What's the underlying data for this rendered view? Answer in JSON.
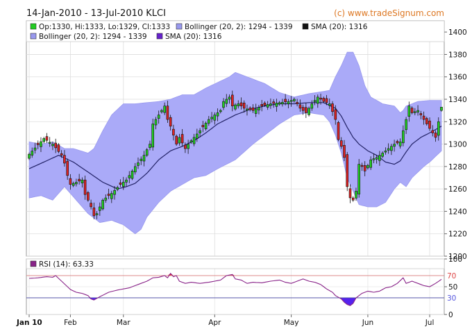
{
  "header": {
    "title": "14-Jan-2010 - 13-Jul-2010 KLCI",
    "watermark": "(c) www.tradeSignum.com"
  },
  "legend": {
    "ohlc": "Op:1330, Hi:1333, Lo:1329, Cl:1333",
    "bollinger_1": "Bollinger (20, 2): 1294 - 1339",
    "sma_1": "SMA (20): 1316",
    "bollinger_2": "Bollinger (20, 2): 1294 - 1339",
    "sma_2": "SMA (20): 1316"
  },
  "rsi_legend": "RSI (14): 63.33",
  "colors": {
    "up_candle": "#22cc22",
    "down_candle": "#dd2222",
    "bollinger_fill": "#aaaaf8",
    "bollinger_legend": "#9999ee",
    "sma_line": "#222266",
    "sma_legend": "#6622cc",
    "rsi_line": "#882288",
    "rsi_over": "#ee2222",
    "rsi_under": "#5522ee",
    "rsi_legend": "#882288",
    "level70": "#dd8888",
    "level30": "#5555aa"
  },
  "chart_data": [
    {
      "type": "candlestick",
      "title": "14-Jan-2010 - 13-Jul-2010 KLCI",
      "ylim": [
        1200,
        1410
      ],
      "y_ticks": [
        1200,
        1220,
        1240,
        1260,
        1280,
        1300,
        1320,
        1340,
        1360,
        1380,
        1400
      ],
      "x_ticks": [
        "Jan 10",
        "Feb",
        "Mar",
        "Apr",
        "May",
        "Jun",
        "Jul"
      ],
      "x_tick_index": [
        0,
        14,
        32,
        63,
        89,
        115,
        136
      ],
      "n_days": 141,
      "close_keys": [
        [
          0,
          1291
        ],
        [
          5,
          1305
        ],
        [
          8,
          1300
        ],
        [
          11,
          1290
        ],
        [
          12,
          1283
        ],
        [
          13,
          1272
        ],
        [
          14,
          1264
        ],
        [
          16,
          1266
        ],
        [
          18,
          1268
        ],
        [
          19,
          1255
        ],
        [
          20,
          1250
        ],
        [
          21,
          1244
        ],
        [
          22,
          1236
        ],
        [
          23,
          1238
        ],
        [
          25,
          1250
        ],
        [
          28,
          1256
        ],
        [
          31,
          1264
        ],
        [
          33,
          1268
        ],
        [
          36,
          1280
        ],
        [
          39,
          1290
        ],
        [
          41,
          1300
        ],
        [
          42,
          1318
        ],
        [
          44,
          1326
        ],
        [
          46,
          1334
        ],
        [
          47,
          1322
        ],
        [
          48,
          1316
        ],
        [
          49,
          1308
        ],
        [
          50,
          1300
        ],
        [
          51,
          1306
        ],
        [
          53,
          1296
        ],
        [
          54,
          1300
        ],
        [
          56,
          1306
        ],
        [
          58,
          1312
        ],
        [
          61,
          1322
        ],
        [
          63,
          1326
        ],
        [
          65,
          1330
        ],
        [
          66,
          1338
        ],
        [
          68,
          1342
        ],
        [
          69,
          1334
        ],
        [
          71,
          1336
        ],
        [
          73,
          1332
        ],
        [
          76,
          1330
        ],
        [
          79,
          1334
        ],
        [
          82,
          1336
        ],
        [
          85,
          1337
        ],
        [
          88,
          1338
        ],
        [
          90,
          1340
        ],
        [
          92,
          1332
        ],
        [
          94,
          1328
        ],
        [
          96,
          1336
        ],
        [
          98,
          1342
        ],
        [
          100,
          1338
        ],
        [
          102,
          1336
        ],
        [
          104,
          1322
        ],
        [
          105,
          1304
        ],
        [
          106,
          1298
        ],
        [
          107,
          1288
        ],
        [
          108,
          1262
        ],
        [
          109,
          1252
        ],
        [
          110,
          1250
        ],
        [
          111,
          1258
        ],
        [
          112,
          1282
        ],
        [
          113,
          1280
        ],
        [
          114,
          1276
        ],
        [
          116,
          1286
        ],
        [
          118,
          1288
        ],
        [
          120,
          1292
        ],
        [
          122,
          1296
        ],
        [
          124,
          1300
        ],
        [
          126,
          1302
        ],
        [
          128,
          1322
        ],
        [
          129,
          1334
        ],
        [
          130,
          1328
        ],
        [
          132,
          1330
        ],
        [
          134,
          1322
        ],
        [
          136,
          1314
        ],
        [
          138,
          1306
        ],
        [
          139,
          1320
        ],
        [
          140,
          1333
        ]
      ],
      "sma20_keys": [
        [
          0,
          1278
        ],
        [
          10,
          1290
        ],
        [
          15,
          1284
        ],
        [
          20,
          1275
        ],
        [
          25,
          1266
        ],
        [
          30,
          1260
        ],
        [
          33,
          1262
        ],
        [
          36,
          1265
        ],
        [
          40,
          1274
        ],
        [
          44,
          1286
        ],
        [
          48,
          1294
        ],
        [
          52,
          1298
        ],
        [
          56,
          1303
        ],
        [
          60,
          1310
        ],
        [
          64,
          1318
        ],
        [
          70,
          1326
        ],
        [
          75,
          1331
        ],
        [
          80,
          1334
        ],
        [
          85,
          1336
        ],
        [
          90,
          1336
        ],
        [
          95,
          1337
        ],
        [
          100,
          1337
        ],
        [
          104,
          1332
        ],
        [
          106,
          1325
        ],
        [
          108,
          1315
        ],
        [
          110,
          1306
        ],
        [
          112,
          1300
        ],
        [
          115,
          1294
        ],
        [
          118,
          1290
        ],
        [
          121,
          1284
        ],
        [
          124,
          1282
        ],
        [
          126,
          1285
        ],
        [
          128,
          1293
        ],
        [
          130,
          1300
        ],
        [
          133,
          1306
        ],
        [
          136,
          1310
        ],
        [
          140,
          1316
        ]
      ],
      "boll_upper_keys": [
        [
          0,
          1302
        ],
        [
          4,
          1300
        ],
        [
          8,
          1302
        ],
        [
          12,
          1296
        ],
        [
          15,
          1296
        ],
        [
          20,
          1292
        ],
        [
          22,
          1296
        ],
        [
          25,
          1312
        ],
        [
          28,
          1326
        ],
        [
          32,
          1336
        ],
        [
          36,
          1336
        ],
        [
          40,
          1337
        ],
        [
          44,
          1338
        ],
        [
          48,
          1340
        ],
        [
          52,
          1344
        ],
        [
          56,
          1344
        ],
        [
          60,
          1350
        ],
        [
          64,
          1355
        ],
        [
          68,
          1360
        ],
        [
          70,
          1364
        ],
        [
          74,
          1360
        ],
        [
          80,
          1354
        ],
        [
          85,
          1346
        ],
        [
          90,
          1342
        ],
        [
          95,
          1345
        ],
        [
          100,
          1347
        ],
        [
          102,
          1348
        ],
        [
          104,
          1360
        ],
        [
          106,
          1370
        ],
        [
          108,
          1382
        ],
        [
          110,
          1382
        ],
        [
          112,
          1370
        ],
        [
          114,
          1352
        ],
        [
          116,
          1342
        ],
        [
          120,
          1336
        ],
        [
          124,
          1334
        ],
        [
          126,
          1328
        ],
        [
          127,
          1330
        ],
        [
          128,
          1334
        ],
        [
          132,
          1338
        ],
        [
          136,
          1339
        ],
        [
          140,
          1339
        ]
      ],
      "boll_lower_keys": [
        [
          0,
          1252
        ],
        [
          4,
          1254
        ],
        [
          8,
          1250
        ],
        [
          12,
          1262
        ],
        [
          16,
          1250
        ],
        [
          20,
          1238
        ],
        [
          24,
          1230
        ],
        [
          28,
          1232
        ],
        [
          32,
          1228
        ],
        [
          34,
          1224
        ],
        [
          36,
          1220
        ],
        [
          38,
          1224
        ],
        [
          40,
          1235
        ],
        [
          44,
          1248
        ],
        [
          48,
          1258
        ],
        [
          52,
          1264
        ],
        [
          56,
          1270
        ],
        [
          60,
          1272
        ],
        [
          64,
          1278
        ],
        [
          70,
          1286
        ],
        [
          76,
          1300
        ],
        [
          80,
          1308
        ],
        [
          85,
          1318
        ],
        [
          90,
          1326
        ],
        [
          95,
          1328
        ],
        [
          100,
          1326
        ],
        [
          102,
          1320
        ],
        [
          104,
          1308
        ],
        [
          106,
          1292
        ],
        [
          108,
          1270
        ],
        [
          110,
          1258
        ],
        [
          112,
          1246
        ],
        [
          115,
          1244
        ],
        [
          118,
          1244
        ],
        [
          121,
          1248
        ],
        [
          124,
          1260
        ],
        [
          126,
          1266
        ],
        [
          128,
          1262
        ],
        [
          130,
          1270
        ],
        [
          134,
          1280
        ],
        [
          136,
          1284
        ],
        [
          140,
          1294
        ]
      ],
      "last_candle": {
        "open": 1330,
        "high": 1333,
        "low": 1329,
        "close": 1333
      },
      "sma20_last": 1316,
      "bollinger_last": [
        1294,
        1339
      ]
    },
    {
      "type": "line",
      "title": "RSI (14): 63.33",
      "ylim": [
        0,
        100
      ],
      "y_ticks": [
        0,
        50,
        100
      ],
      "levels": [
        70,
        30
      ],
      "rsi_keys": [
        [
          0,
          65
        ],
        [
          3,
          66
        ],
        [
          6,
          68
        ],
        [
          8,
          67
        ],
        [
          9,
          70
        ],
        [
          10,
          65
        ],
        [
          12,
          55
        ],
        [
          14,
          45
        ],
        [
          16,
          40
        ],
        [
          18,
          38
        ],
        [
          20,
          34
        ],
        [
          21,
          28
        ],
        [
          22,
          26
        ],
        [
          24,
          32
        ],
        [
          27,
          40
        ],
        [
          30,
          44
        ],
        [
          34,
          48
        ],
        [
          37,
          54
        ],
        [
          40,
          60
        ],
        [
          42,
          66
        ],
        [
          44,
          67
        ],
        [
          46,
          70
        ],
        [
          47,
          66
        ],
        [
          48,
          74
        ],
        [
          49,
          68
        ],
        [
          50,
          70
        ],
        [
          51,
          60
        ],
        [
          53,
          56
        ],
        [
          55,
          58
        ],
        [
          58,
          56
        ],
        [
          61,
          58
        ],
        [
          63,
          60
        ],
        [
          65,
          62
        ],
        [
          67,
          70
        ],
        [
          69,
          72
        ],
        [
          70,
          64
        ],
        [
          72,
          62
        ],
        [
          74,
          56
        ],
        [
          76,
          58
        ],
        [
          79,
          57
        ],
        [
          82,
          60
        ],
        [
          85,
          62
        ],
        [
          87,
          58
        ],
        [
          89,
          56
        ],
        [
          91,
          60
        ],
        [
          93,
          64
        ],
        [
          95,
          60
        ],
        [
          97,
          58
        ],
        [
          99,
          54
        ],
        [
          101,
          46
        ],
        [
          103,
          40
        ],
        [
          104,
          34
        ],
        [
          106,
          28
        ],
        [
          107,
          22
        ],
        [
          108,
          18
        ],
        [
          109,
          16
        ],
        [
          110,
          20
        ],
        [
          111,
          30
        ],
        [
          113,
          38
        ],
        [
          115,
          42
        ],
        [
          117,
          40
        ],
        [
          119,
          42
        ],
        [
          121,
          48
        ],
        [
          123,
          50
        ],
        [
          125,
          56
        ],
        [
          127,
          66
        ],
        [
          128,
          56
        ],
        [
          130,
          60
        ],
        [
          132,
          56
        ],
        [
          134,
          52
        ],
        [
          136,
          50
        ],
        [
          138,
          56
        ],
        [
          140,
          63.33
        ]
      ]
    }
  ]
}
